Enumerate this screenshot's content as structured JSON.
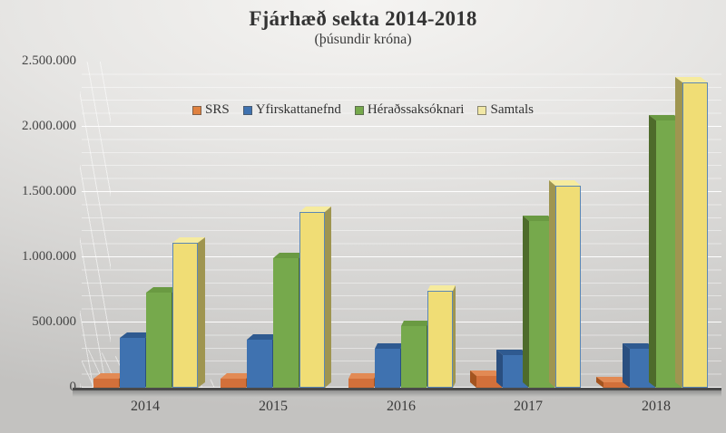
{
  "chart": {
    "title": "Fjárhæð sekta 2014-2018",
    "subtitle": "(þúsundir króna)"
  },
  "chart_data": {
    "type": "bar",
    "style": "3d-clustered-column",
    "title": "Fjárhæð sekta 2014-2018",
    "subtitle": "(þúsundir króna)",
    "unit": "þúsundir króna",
    "categories": [
      "2014",
      "2015",
      "2016",
      "2017",
      "2018"
    ],
    "series": [
      {
        "name": "SRS",
        "values": [
          70000,
          70000,
          70000,
          90000,
          40000
        ],
        "colors": {
          "front": "#d2703a",
          "top": "#e28a54",
          "side": "#a4541f",
          "marker": "#e0813f"
        }
      },
      {
        "name": "Yfirskattanefnd",
        "values": [
          380000,
          370000,
          300000,
          250000,
          300000
        ],
        "colors": {
          "front": "#3f72b0",
          "top": "#2f5a90",
          "side": "#2a4f80",
          "marker": "#3f72b0"
        }
      },
      {
        "name": "Héraðssaksóknari",
        "values": [
          730000,
          990000,
          470000,
          1280000,
          2050000
        ],
        "colors": {
          "front": "#76a94c",
          "top": "#6a9a42",
          "side": "#4e6b2b",
          "marker": "#76a94c"
        }
      },
      {
        "name": "Samtals",
        "values": [
          1110000,
          1350000,
          740000,
          1550000,
          2340000
        ],
        "colors": {
          "front": "#f0dd75",
          "top": "#f6eb9e",
          "side": "#9f9550",
          "marker": "#f1e8a6",
          "border": "#5b87b5"
        }
      }
    ],
    "ylim": [
      0,
      2500000
    ],
    "y_ticks": [
      {
        "label": "2.500.000",
        "value": 2500000
      },
      {
        "label": "2.000.000",
        "value": 2000000
      },
      {
        "label": "1.500.000",
        "value": 1500000
      },
      {
        "label": "1.000.000",
        "value": 1000000
      },
      {
        "label": "500.000",
        "value": 500000
      },
      {
        "label": "0",
        "value": 0
      }
    ],
    "grid": {
      "major_interval": 500000,
      "minor_interval": 100000,
      "color": "#ffffff"
    },
    "legend_position": "top-center"
  }
}
